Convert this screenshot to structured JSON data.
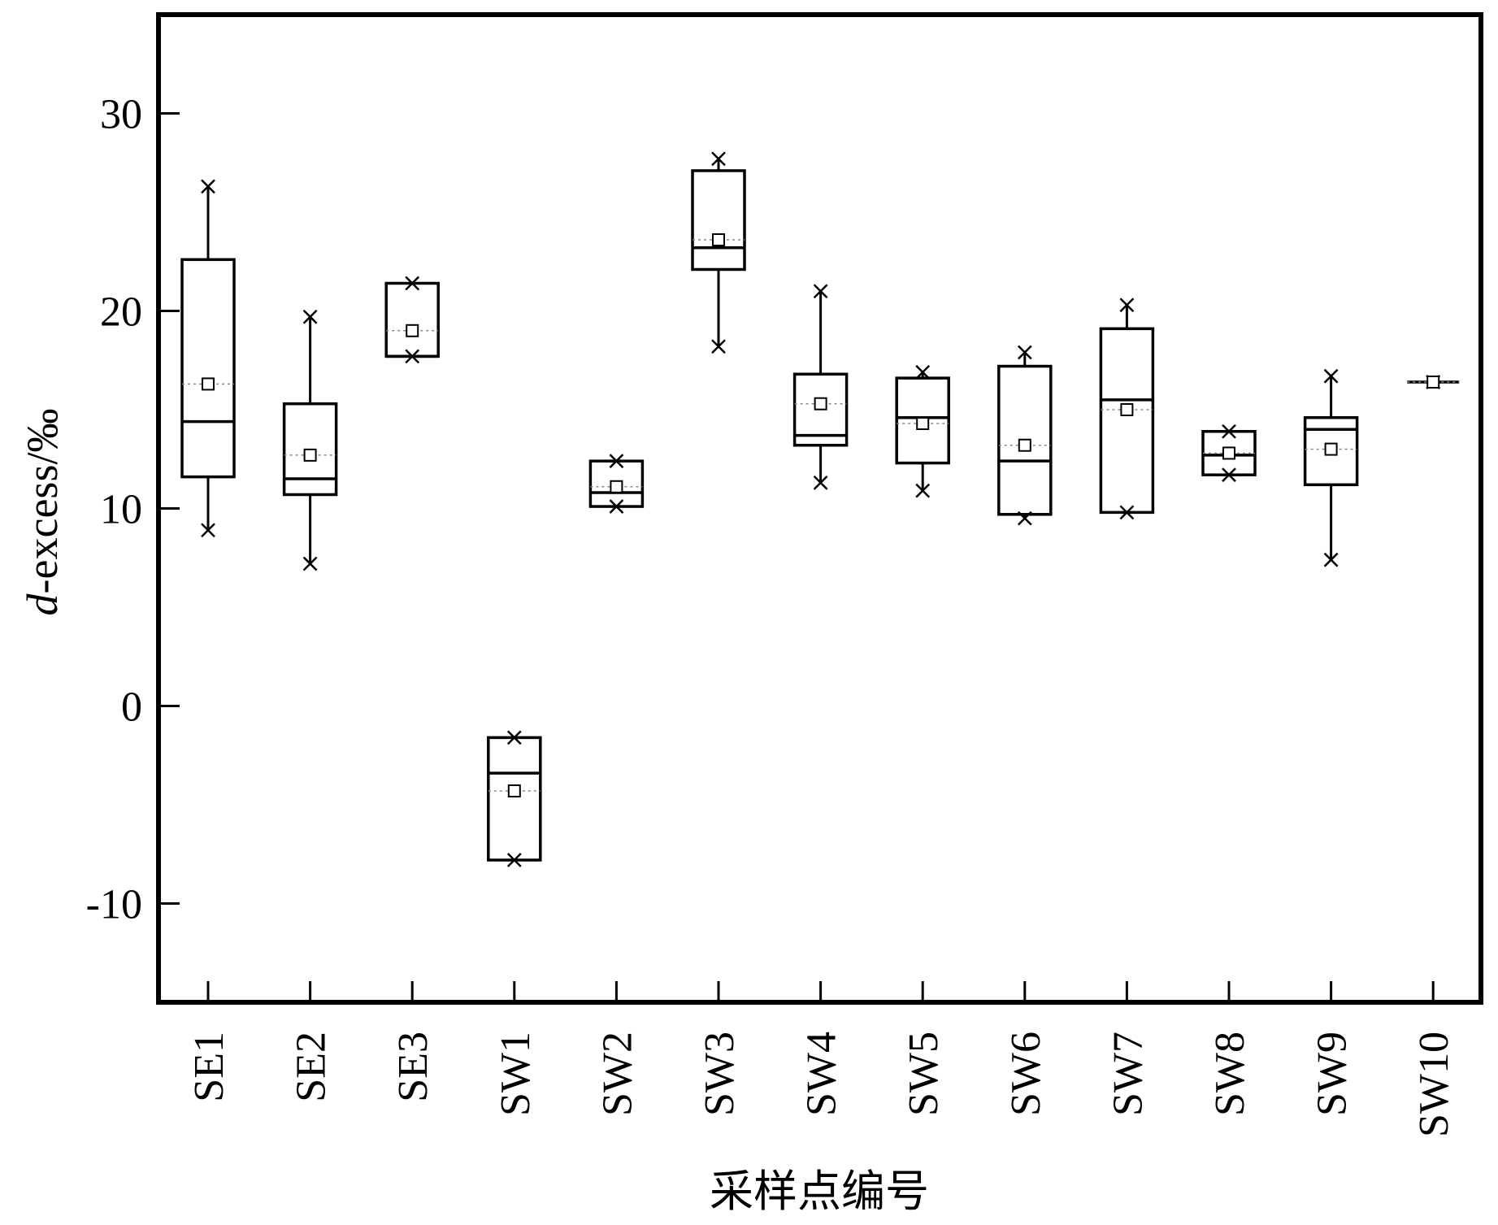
{
  "chart_data": {
    "type": "box",
    "ylabel_italic": "d",
    "ylabel_rest": "-excess/‰",
    "xlabel": "采样点编号",
    "ylim": [
      -15,
      35
    ],
    "yticks": [
      -10,
      0,
      10,
      20,
      30
    ],
    "grid": false,
    "series": [
      {
        "category": "SE1",
        "q1": 11.6,
        "median": 14.4,
        "q3": 22.6,
        "whisker_low": 8.9,
        "whisker_high": 26.3,
        "mean": 16.3,
        "min": 8.9,
        "max": 26.3
      },
      {
        "category": "SE2",
        "q1": 10.7,
        "median": 11.5,
        "q3": 15.3,
        "whisker_low": 7.2,
        "whisker_high": 19.7,
        "mean": 12.7,
        "min": 7.2,
        "max": 19.7
      },
      {
        "category": "SE3",
        "q1": 17.7,
        "median": 17.7,
        "q3": 21.4,
        "whisker_low": 17.7,
        "whisker_high": 21.4,
        "mean": 19.0,
        "min": 17.7,
        "max": 21.4
      },
      {
        "category": "SW1",
        "q1": -7.8,
        "median": -3.4,
        "q3": -1.6,
        "whisker_low": -7.8,
        "whisker_high": -1.6,
        "mean": -4.3,
        "min": -7.8,
        "max": -1.6
      },
      {
        "category": "SW2",
        "q1": 10.1,
        "median": 10.8,
        "q3": 12.4,
        "whisker_low": 10.1,
        "whisker_high": 12.4,
        "mean": 11.1,
        "min": 10.1,
        "max": 12.4
      },
      {
        "category": "SW3",
        "q1": 22.1,
        "median": 23.2,
        "q3": 27.1,
        "whisker_low": 18.2,
        "whisker_high": 27.7,
        "mean": 23.6,
        "min": 18.2,
        "max": 27.7
      },
      {
        "category": "SW4",
        "q1": 13.2,
        "median": 13.7,
        "q3": 16.8,
        "whisker_low": 11.3,
        "whisker_high": 21.0,
        "mean": 15.3,
        "min": 11.3,
        "max": 21.0
      },
      {
        "category": "SW5",
        "q1": 12.3,
        "median": 14.6,
        "q3": 16.6,
        "whisker_low": 10.9,
        "whisker_high": 16.9,
        "mean": 14.3,
        "min": 10.9,
        "max": 16.9
      },
      {
        "category": "SW6",
        "q1": 9.7,
        "median": 12.4,
        "q3": 17.2,
        "whisker_low": 9.5,
        "whisker_high": 17.9,
        "mean": 13.2,
        "min": 9.5,
        "max": 17.9
      },
      {
        "category": "SW7",
        "q1": 9.8,
        "median": 15.5,
        "q3": 19.1,
        "whisker_low": 9.8,
        "whisker_high": 20.3,
        "mean": 15.0,
        "min": 9.8,
        "max": 20.3
      },
      {
        "category": "SW8",
        "q1": 11.7,
        "median": 12.7,
        "q3": 13.9,
        "whisker_low": 11.7,
        "whisker_high": 13.9,
        "mean": 12.8,
        "min": 11.7,
        "max": 13.9
      },
      {
        "category": "SW9",
        "q1": 11.2,
        "median": 14.0,
        "q3": 14.6,
        "whisker_low": 7.4,
        "whisker_high": 16.7,
        "mean": 13.0,
        "min": 7.4,
        "max": 16.7
      },
      {
        "category": "SW10",
        "q1": 16.4,
        "median": 16.4,
        "q3": 16.4,
        "whisker_low": 16.4,
        "whisker_high": 16.4,
        "mean": 16.4,
        "min": 16.4,
        "max": 16.4
      }
    ]
  }
}
